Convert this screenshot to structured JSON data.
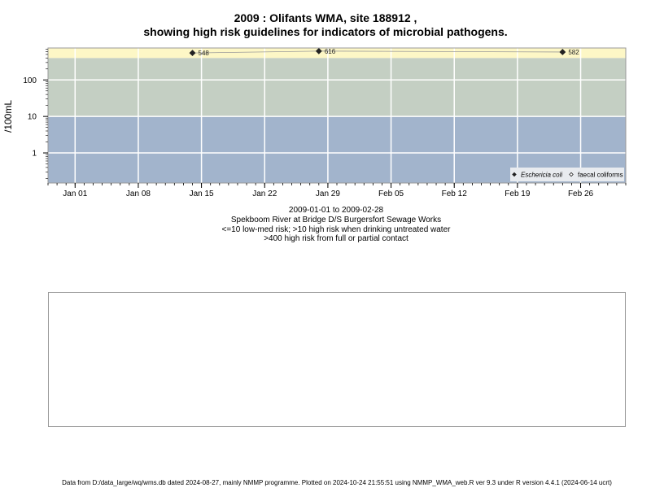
{
  "title_line1": "2009 : Olifants WMA, site 188912 ,",
  "title_line2": "showing high risk guidelines for indicators of microbial pathogens.",
  "chart_data": {
    "type": "scatter",
    "x_axis": {
      "type": "date",
      "range": [
        "2008-12-29",
        "2009-03-03"
      ],
      "ticks": [
        {
          "date": "2009-01-01",
          "label": "Jan 01"
        },
        {
          "date": "2009-01-08",
          "label": "Jan 08"
        },
        {
          "date": "2009-01-15",
          "label": "Jan 15"
        },
        {
          "date": "2009-01-22",
          "label": "Jan 22"
        },
        {
          "date": "2009-01-29",
          "label": "Jan 29"
        },
        {
          "date": "2009-02-05",
          "label": "Feb 05"
        },
        {
          "date": "2009-02-12",
          "label": "Feb 12"
        },
        {
          "date": "2009-02-19",
          "label": "Feb 19"
        },
        {
          "date": "2009-02-26",
          "label": "Feb 26"
        }
      ]
    },
    "y_axis": {
      "label": "/100mL",
      "scale": "log10",
      "range": [
        0.15,
        750
      ],
      "ticks": [
        {
          "value": 1,
          "label": "1"
        },
        {
          "value": 10,
          "label": "10"
        },
        {
          "value": 100,
          "label": "100"
        }
      ]
    },
    "risk_bands": [
      {
        "from": 0.15,
        "to": 10,
        "color": "#a2b4cc"
      },
      {
        "from": 10,
        "to": 400,
        "color": "#c4cfc3"
      },
      {
        "from": 400,
        "to": 750,
        "color": "#fdf7c6"
      }
    ],
    "series": [
      {
        "name": "Eschericia coli",
        "marker": "filled-diamond",
        "color": "#222222",
        "points": [
          {
            "date": "2009-01-14",
            "value": 548,
            "label": "548"
          },
          {
            "date": "2009-01-28",
            "value": 616,
            "label": "616"
          },
          {
            "date": "2009-02-24",
            "value": 582,
            "label": "582"
          }
        ]
      },
      {
        "name": "faecal coliforms",
        "marker": "open-diamond",
        "color": "#222222",
        "points": []
      }
    ],
    "grid": true,
    "legend_position": "bottom-right"
  },
  "caption": {
    "line1": "2009-01-01 to 2009-02-28",
    "line2": "Spekboom River at Bridge D/S Burgersfort Sewage Works",
    "line3": "<=10 low-med risk; >10 high risk when drinking untreated water",
    "line4": ">400 high risk from full or partial contact"
  },
  "footer": "Data from D:/data_large/wq/wms.db dated 2024-08-27, mainly NMMP programme. Plotted on 2024-10-24 21:55:51 using NMMP_WMA_web.R ver 9.3 under R version 4.4.1 (2024-06-14 ucrt)"
}
